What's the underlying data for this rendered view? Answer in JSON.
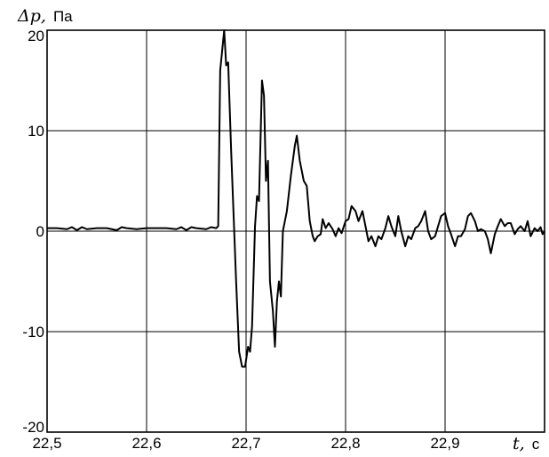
{
  "chart_data": {
    "type": "line",
    "title": "",
    "xlabel": "t, с",
    "ylabel": "Δp, Па",
    "xlim": [
      22.5,
      23.0
    ],
    "ylim": [
      -20,
      20
    ],
    "grid": true,
    "x_ticks": [
      {
        "value": 22.5,
        "label": "22,5"
      },
      {
        "value": 22.6,
        "label": "22,6"
      },
      {
        "value": 22.7,
        "label": "22,7"
      },
      {
        "value": 22.8,
        "label": "22,8"
      },
      {
        "value": 22.9,
        "label": "22,9"
      }
    ],
    "y_ticks": [
      {
        "value": 20,
        "label": "20"
      },
      {
        "value": 10,
        "label": "10"
      },
      {
        "value": 0,
        "label": "0"
      },
      {
        "value": -10,
        "label": "-10"
      },
      {
        "value": -20,
        "label": "-20"
      }
    ],
    "axis_text": {
      "y_var": "Δp,",
      "y_unit": "Па",
      "x_var": "t,",
      "x_unit": "с"
    },
    "series": [
      {
        "points": [
          [
            22.5,
            0.3
          ],
          [
            22.51,
            0.3
          ],
          [
            22.52,
            0.2
          ],
          [
            22.525,
            0.4
          ],
          [
            22.53,
            0.1
          ],
          [
            22.535,
            0.4
          ],
          [
            22.54,
            0.2
          ],
          [
            22.55,
            0.3
          ],
          [
            22.56,
            0.3
          ],
          [
            22.57,
            0.1
          ],
          [
            22.575,
            0.4
          ],
          [
            22.58,
            0.3
          ],
          [
            22.59,
            0.2
          ],
          [
            22.6,
            0.3
          ],
          [
            22.61,
            0.3
          ],
          [
            22.62,
            0.3
          ],
          [
            22.63,
            0.2
          ],
          [
            22.635,
            0.4
          ],
          [
            22.64,
            0.1
          ],
          [
            22.645,
            0.4
          ],
          [
            22.65,
            0.3
          ],
          [
            22.66,
            0.2
          ],
          [
            22.665,
            0.4
          ],
          [
            22.67,
            0.3
          ],
          [
            22.672,
            0.5
          ],
          [
            22.674,
            16.0
          ],
          [
            22.678,
            20.0
          ],
          [
            22.68,
            16.5
          ],
          [
            22.682,
            16.8
          ],
          [
            22.685,
            8.0
          ],
          [
            22.69,
            -5.0
          ],
          [
            22.693,
            -12.0
          ],
          [
            22.696,
            -13.5
          ],
          [
            22.699,
            -13.5
          ],
          [
            22.702,
            -11.5
          ],
          [
            22.704,
            -12.0
          ],
          [
            22.706,
            -9.5
          ],
          [
            22.709,
            0.5
          ],
          [
            22.711,
            3.5
          ],
          [
            22.713,
            3.0
          ],
          [
            22.716,
            15.0
          ],
          [
            22.718,
            13.5
          ],
          [
            22.72,
            5.0
          ],
          [
            22.722,
            7.0
          ],
          [
            22.724,
            -5.0
          ],
          [
            22.727,
            -8.0
          ],
          [
            22.729,
            -11.5
          ],
          [
            22.731,
            -7.0
          ],
          [
            22.733,
            -5.0
          ],
          [
            22.735,
            -6.5
          ],
          [
            22.737,
            0.0
          ],
          [
            22.741,
            2.0
          ],
          [
            22.745,
            5.5
          ],
          [
            22.749,
            8.5
          ],
          [
            22.751,
            9.5
          ],
          [
            22.754,
            7.0
          ],
          [
            22.758,
            5.0
          ],
          [
            22.761,
            4.5
          ],
          [
            22.764,
            1.0
          ],
          [
            22.767,
            -0.5
          ],
          [
            22.769,
            -1.0
          ],
          [
            22.772,
            -0.5
          ],
          [
            22.775,
            -0.3
          ],
          [
            22.777,
            1.2
          ],
          [
            22.78,
            0.3
          ],
          [
            22.783,
            0.8
          ],
          [
            22.787,
            0.2
          ],
          [
            22.79,
            -0.5
          ],
          [
            22.793,
            0.3
          ],
          [
            22.796,
            -0.2
          ],
          [
            22.8,
            1.0
          ],
          [
            22.803,
            1.2
          ],
          [
            22.806,
            2.5
          ],
          [
            22.81,
            2.0
          ],
          [
            22.813,
            1.0
          ],
          [
            22.817,
            2.0
          ],
          [
            22.82,
            0.5
          ],
          [
            22.823,
            -1.0
          ],
          [
            22.826,
            -0.5
          ],
          [
            22.83,
            -1.5
          ],
          [
            22.833,
            -0.5
          ],
          [
            22.836,
            -0.8
          ],
          [
            22.84,
            0.3
          ],
          [
            22.843,
            1.5
          ],
          [
            22.846,
            0.5
          ],
          [
            22.85,
            -0.5
          ],
          [
            22.853,
            1.5
          ],
          [
            22.856,
            0.0
          ],
          [
            22.86,
            -1.5
          ],
          [
            22.863,
            -0.5
          ],
          [
            22.866,
            -0.8
          ],
          [
            22.87,
            0.3
          ],
          [
            22.873,
            0.5
          ],
          [
            22.876,
            1.0
          ],
          [
            22.88,
            2.0
          ],
          [
            22.883,
            0.0
          ],
          [
            22.886,
            -0.8
          ],
          [
            22.89,
            -0.5
          ],
          [
            22.893,
            0.5
          ],
          [
            22.896,
            1.5
          ],
          [
            22.9,
            1.8
          ],
          [
            22.903,
            0.5
          ],
          [
            22.906,
            -0.3
          ],
          [
            22.91,
            -1.5
          ],
          [
            22.913,
            -0.5
          ],
          [
            22.916,
            -0.5
          ],
          [
            22.92,
            0.2
          ],
          [
            22.923,
            1.5
          ],
          [
            22.926,
            1.8
          ],
          [
            22.93,
            1.0
          ],
          [
            22.933,
            0.0
          ],
          [
            22.936,
            0.2
          ],
          [
            22.94,
            0.0
          ],
          [
            22.943,
            -0.8
          ],
          [
            22.946,
            -2.2
          ],
          [
            22.95,
            -0.3
          ],
          [
            22.953,
            0.5
          ],
          [
            22.956,
            1.2
          ],
          [
            22.96,
            0.5
          ],
          [
            22.963,
            0.8
          ],
          [
            22.966,
            0.8
          ],
          [
            22.97,
            -0.3
          ],
          [
            22.973,
            0.2
          ],
          [
            22.976,
            0.5
          ],
          [
            22.98,
            0.0
          ],
          [
            22.983,
            1.0
          ],
          [
            22.986,
            -0.5
          ],
          [
            22.99,
            0.3
          ],
          [
            22.993,
            0.0
          ],
          [
            22.996,
            0.4
          ],
          [
            22.998,
            -0.3
          ],
          [
            23.0,
            0.0
          ]
        ]
      }
    ]
  }
}
